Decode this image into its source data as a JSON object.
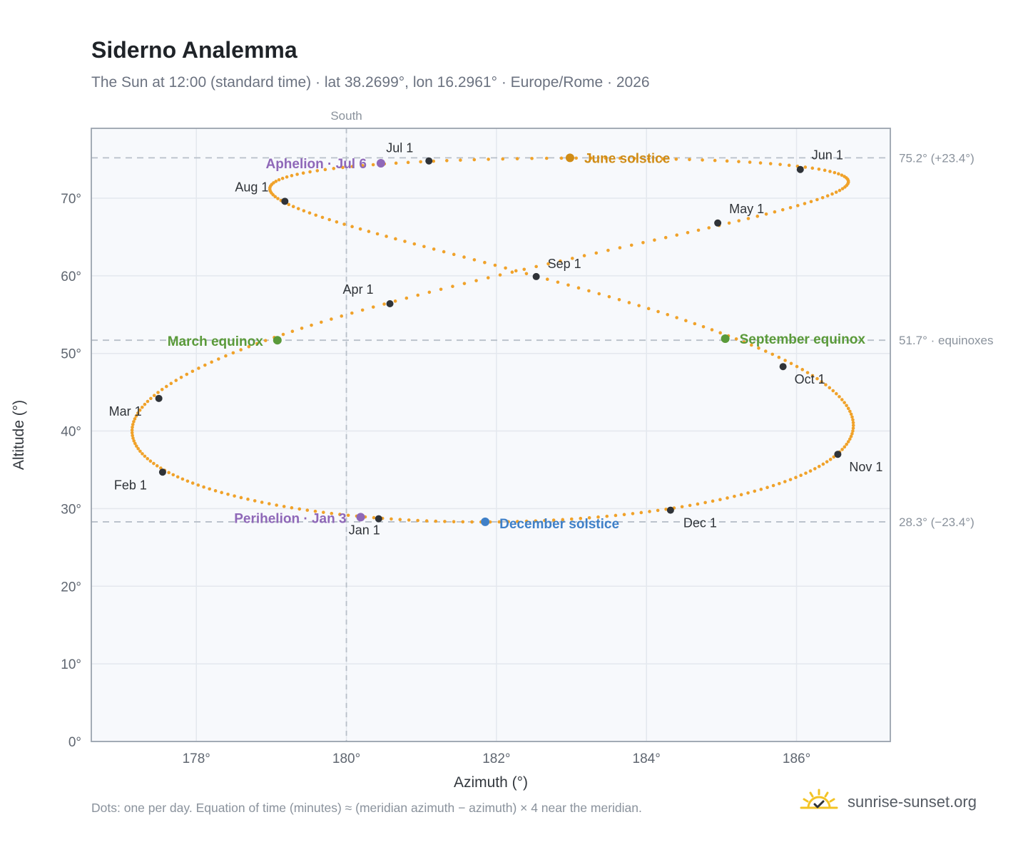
{
  "title": "Siderno Analemma",
  "subtitle": "The Sun at 12:00 (standard time) · lat 38.2699°, lon 16.2961° · Europe/Rome · 2026",
  "footnote": "Dots: one per day. Equation of time (minutes) ≈ (meridian azimuth − azimuth) × 4 near the meridian.",
  "brand": {
    "text": "sunrise-sunset.org",
    "icon": "sun-logo-icon"
  },
  "colors": {
    "path": "#f0a22a",
    "month_marker": "#2f3338",
    "june_solstice": "#d08c16",
    "december_solstice": "#3f80c8",
    "equinox": "#5a9a3a",
    "apsis": "#8f68b8",
    "grid": "#e4e8ee",
    "reference_line": "#b8c0c9",
    "plot_bg": "#f7f9fc",
    "frame": "#9aa3ae"
  },
  "chart_data": {
    "type": "scatter",
    "xlabel": "Azimuth (°)",
    "ylabel": "Altitude (°)",
    "xlim": [
      176.6,
      187.25
    ],
    "ylim": [
      0,
      79
    ],
    "x_ticks": [
      178,
      180,
      182,
      184,
      186
    ],
    "x_tick_labels": [
      "178°",
      "180°",
      "182°",
      "184°",
      "186°"
    ],
    "y_ticks": [
      0,
      10,
      20,
      30,
      40,
      50,
      60,
      70
    ],
    "y_tick_labels": [
      "0°",
      "10°",
      "20°",
      "30°",
      "40°",
      "50°",
      "60°",
      "70°"
    ],
    "grid": true,
    "south_line": {
      "x": 180,
      "label": "South"
    },
    "reference_lines": [
      {
        "y": 75.2,
        "label": "75.2° (+23.4°)"
      },
      {
        "y": 51.7,
        "label": "51.7° · equinoxes"
      },
      {
        "y": 28.3,
        "label": "28.3° (−23.4°)"
      }
    ],
    "daily_positions_note": "one dot per day",
    "month_markers": [
      {
        "label": "Jan 1",
        "az": 180.43,
        "alt": 28.7
      },
      {
        "label": "Feb 1",
        "az": 177.55,
        "alt": 34.7
      },
      {
        "label": "Mar 1",
        "az": 177.5,
        "alt": 44.2
      },
      {
        "label": "Apr 1",
        "az": 180.58,
        "alt": 56.4
      },
      {
        "label": "May 1",
        "az": 184.95,
        "alt": 66.8
      },
      {
        "label": "Jun 1",
        "az": 186.05,
        "alt": 73.7
      },
      {
        "label": "Jul 1",
        "az": 181.1,
        "alt": 74.8
      },
      {
        "label": "Aug 1",
        "az": 179.18,
        "alt": 69.6
      },
      {
        "label": "Sep 1",
        "az": 182.53,
        "alt": 59.9
      },
      {
        "label": "Oct 1",
        "az": 185.82,
        "alt": 48.3
      },
      {
        "label": "Nov 1",
        "az": 186.55,
        "alt": 37.0
      },
      {
        "label": "Dec 1",
        "az": 184.32,
        "alt": 29.8
      }
    ],
    "events": [
      {
        "label": "June solstice",
        "az": 182.98,
        "alt": 75.2,
        "color_key": "june_solstice"
      },
      {
        "label": "December solstice",
        "az": 181.85,
        "alt": 28.3,
        "color_key": "december_solstice"
      },
      {
        "label": "March equinox",
        "az": 179.08,
        "alt": 51.7,
        "color_key": "equinox"
      },
      {
        "label": "September equinox",
        "az": 185.05,
        "alt": 51.9,
        "color_key": "equinox"
      },
      {
        "label": "Aphelion · Jul 6",
        "az": 180.46,
        "alt": 74.5,
        "color_key": "apsis"
      },
      {
        "label": "Perihelion · Jan 3",
        "az": 180.19,
        "alt": 28.9,
        "color_key": "apsis"
      }
    ]
  }
}
